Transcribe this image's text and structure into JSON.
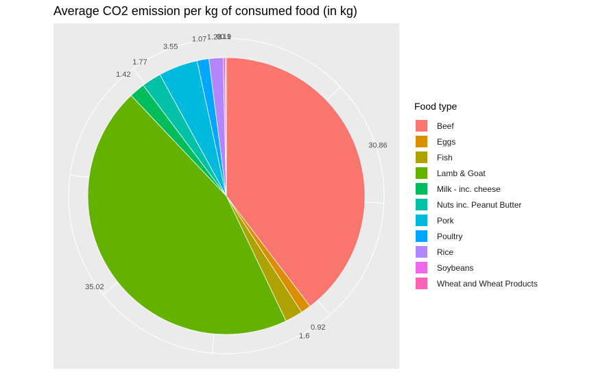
{
  "chart_data": {
    "type": "pie",
    "title": "Average CO2 emission per kg of consumed food (in kg)",
    "legend_title": "Food type",
    "legend_position": "right",
    "grid": true,
    "series": [
      {
        "name": "Beef",
        "value": 30.86,
        "color": "#F8766D"
      },
      {
        "name": "Eggs",
        "value": 0.92,
        "color": "#DB8E00"
      },
      {
        "name": "Fish",
        "value": 1.6,
        "color": "#AEA200"
      },
      {
        "name": "Lamb & Goat",
        "value": 35.02,
        "color": "#64B200"
      },
      {
        "name": "Milk - inc. cheese",
        "value": 1.42,
        "color": "#00BD5C"
      },
      {
        "name": "Nuts inc. Peanut Butter",
        "value": 1.77,
        "color": "#00C1A7"
      },
      {
        "name": "Pork",
        "value": 3.55,
        "color": "#00BADE"
      },
      {
        "name": "Poultry",
        "value": 1.07,
        "color": "#00A6FF"
      },
      {
        "name": "Rice",
        "value": 1.28,
        "color": "#B385FF"
      },
      {
        "name": "Soybeans",
        "value": 0.19,
        "color": "#EF67EB"
      },
      {
        "name": "Wheat and Wheat Products",
        "value": 0.1,
        "color": "#FF63B6"
      }
    ]
  }
}
